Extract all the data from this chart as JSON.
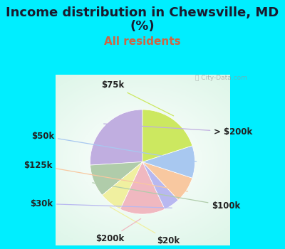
{
  "title_line1": "Income distribution in Chewsville, MD",
  "title_line2": "(%)",
  "subtitle": "All residents",
  "title_color": "#1a1a2e",
  "subtitle_color": "#cc6644",
  "bg_cyan": "#00eeff",
  "bg_chart": "#e0f2e8",
  "watermark": "ⓘ City-Data.com",
  "slices": [
    {
      "label": "> $200k",
      "value": 26,
      "color": "#c0aee0"
    },
    {
      "label": "$100k",
      "value": 10,
      "color": "#b0ccaa"
    },
    {
      "label": "$20k",
      "value": 7,
      "color": "#f0f0a0"
    },
    {
      "label": "$200k",
      "value": 14,
      "color": "#f0b8c0"
    },
    {
      "label": "$30k",
      "value": 5,
      "color": "#b8b8f0"
    },
    {
      "label": "$125k",
      "value": 8,
      "color": "#f8c8a0"
    },
    {
      "label": "$50k",
      "value": 10,
      "color": "#a8c8f0"
    },
    {
      "label": "$75k",
      "value": 20,
      "color": "#cce860"
    }
  ],
  "title_fontsize": 13,
  "subtitle_fontsize": 11,
  "label_fontsize": 8.5
}
